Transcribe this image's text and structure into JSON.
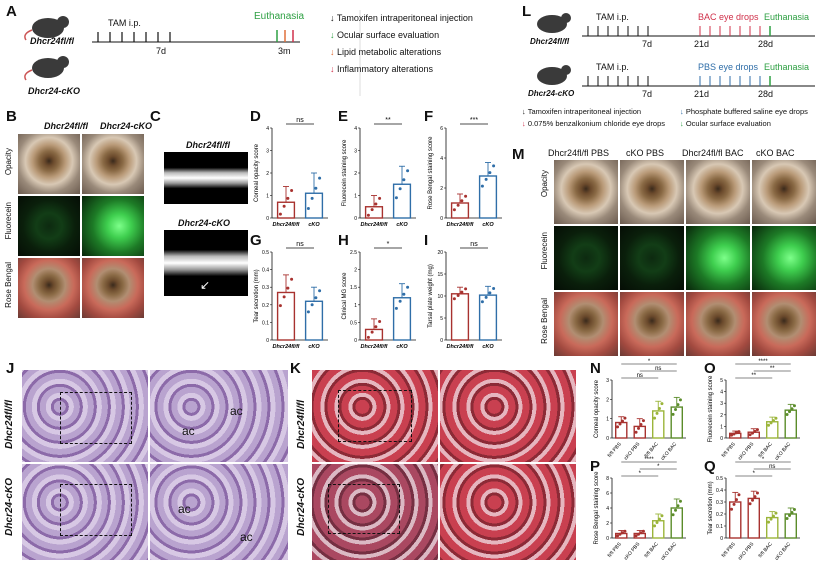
{
  "panels": {
    "A": "A",
    "B": "B",
    "C": "C",
    "D": "D",
    "E": "E",
    "F": "F",
    "G": "G",
    "H": "H",
    "I": "I",
    "J": "J",
    "K": "K",
    "L": "L",
    "M": "M",
    "N": "N",
    "O": "O",
    "P": "P",
    "Q": "Q"
  },
  "panelA": {
    "mouse1": "Dhcr24fl/fl",
    "mouse2": "Dhcr24-cKO",
    "tam": "TAM i.p.",
    "euth": "Euthanasia",
    "t7d": "7d",
    "t3m": "3m",
    "legend": [
      {
        "text": "Tamoxifen intraperitoneal injection",
        "color": "#111111"
      },
      {
        "text": "Ocular surface evaluation",
        "color": "#2ea043"
      },
      {
        "text": "Lipid metabolic alterations",
        "color": "#e0703a"
      },
      {
        "text": "Inflammatory alterations",
        "color": "#d0304a"
      }
    ]
  },
  "panelL": {
    "mouse1": "Dhcr24fl/fl",
    "mouse2": "Dhcr24-cKO",
    "tam": "TAM i.p.",
    "bac": "BAC eye drops",
    "pbs": "PBS eye drops",
    "euth": "Euthanasia",
    "t7d": "7d",
    "t21d": "21d",
    "t28d": "28d",
    "legend_left": [
      "Tamoxifen intraperitoneal injection",
      "0.075% benzalkonium chloride eye drops"
    ],
    "legend_right": [
      "Phosphate buffered saline eye drops",
      "Ocular surface evaluation"
    ]
  },
  "panelB": {
    "cols": [
      "Dhcr24fl/fl",
      "Dhcr24-cKO"
    ],
    "rows": [
      "Opacity",
      "Fluorecein",
      "Rose Bengal"
    ]
  },
  "panelC": {
    "top": "Dhcr24fl/fl",
    "bottom": "Dhcr24-cKO"
  },
  "panelM": {
    "cols": [
      "Dhcr24fl/fl PBS",
      "cKO PBS",
      "Dhcr24fl/fl BAC",
      "cKO BAC"
    ],
    "rows": [
      "Opacity",
      "Fluorecein",
      "Rose Bengal"
    ]
  },
  "panelJ": {
    "rows": [
      "Dhcr24fl/fl",
      "Dhcr24-cKO"
    ],
    "ac": "ac"
  },
  "panelK": {
    "rows": [
      "Dhcr24fl/fl",
      "Dhcr24-cKO"
    ]
  },
  "colors": {
    "red": "#a8322f",
    "blue": "#2f6ea8",
    "green": "#5b8c2a",
    "yellowgreen": "#9bb53a"
  },
  "chart_data": [
    {
      "panel": "D",
      "type": "bar",
      "ylabel": "Corneal opacity score",
      "categories": [
        "Dhcr24fl/fl",
        "cKO"
      ],
      "values": [
        0.7,
        1.1
      ],
      "errors": [
        0.7,
        0.9
      ],
      "ylim": [
        0,
        4
      ],
      "yticks": [
        0,
        1,
        2,
        3,
        4
      ],
      "sig": "ns"
    },
    {
      "panel": "E",
      "type": "bar",
      "ylabel": "Fluorecein staining score",
      "categories": [
        "Dhcr24fl/fl",
        "cKO"
      ],
      "values": [
        0.5,
        1.5
      ],
      "errors": [
        0.5,
        0.8
      ],
      "ylim": [
        0,
        4
      ],
      "yticks": [
        0,
        1,
        2,
        3,
        4
      ],
      "sig": "**"
    },
    {
      "panel": "F",
      "type": "bar",
      "ylabel": "Rose Bengal staining score",
      "categories": [
        "Dhcr24fl/fl",
        "cKO"
      ],
      "values": [
        1.0,
        2.8
      ],
      "errors": [
        0.6,
        0.9
      ],
      "ylim": [
        0,
        6
      ],
      "yticks": [
        0,
        2,
        4,
        6
      ],
      "sig": "***"
    },
    {
      "panel": "G",
      "type": "bar",
      "ylabel": "Tear secretion (mm)",
      "categories": [
        "Dhcr24fl/fl",
        "cKO"
      ],
      "values": [
        0.27,
        0.22
      ],
      "errors": [
        0.1,
        0.08
      ],
      "ylim": [
        0,
        0.5
      ],
      "yticks": [
        0,
        0.1,
        0.2,
        0.3,
        0.4,
        0.5
      ],
      "sig": "ns"
    },
    {
      "panel": "H",
      "type": "bar",
      "ylabel": "Clinical MG score",
      "categories": [
        "Dhcr24fl/fl",
        "cKO"
      ],
      "values": [
        0.3,
        1.2
      ],
      "errors": [
        0.3,
        0.4
      ],
      "ylim": [
        0,
        2.5
      ],
      "yticks": [
        0,
        0.5,
        1,
        1.5,
        2,
        2.5
      ],
      "sig": "*"
    },
    {
      "panel": "I",
      "type": "bar",
      "ylabel": "Tarsal plate weight (mg)",
      "categories": [
        "Dhcr24fl/fl",
        "cKO"
      ],
      "values": [
        10.5,
        10.2
      ],
      "errors": [
        1.5,
        2.0
      ],
      "ylim": [
        0,
        20
      ],
      "yticks": [
        0,
        5,
        10,
        15,
        20
      ],
      "sig": "ns"
    },
    {
      "panel": "N",
      "type": "bar",
      "ylabel": "Corneal opacity score",
      "categories": [
        "fl/fl PBS",
        "cKO PBS",
        "fl/fl BAC",
        "cKO BAC"
      ],
      "values": [
        0.8,
        0.6,
        1.4,
        1.6
      ],
      "errors": [
        0.3,
        0.4,
        0.5,
        0.5
      ],
      "ylim": [
        0,
        3
      ],
      "yticks": [
        0,
        1,
        2,
        3
      ],
      "sig_labels": [
        "ns",
        "ns",
        "*"
      ]
    },
    {
      "panel": "O",
      "type": "bar",
      "ylabel": "Fluorecein staining score",
      "categories": [
        "fl/fl PBS",
        "cKO PBS",
        "fl/fl BAC",
        "cKO BAC"
      ],
      "values": [
        0.4,
        0.5,
        1.4,
        2.4
      ],
      "errors": [
        0.2,
        0.3,
        0.4,
        0.5
      ],
      "ylim": [
        0,
        5
      ],
      "yticks": [
        0,
        1,
        2,
        3,
        4,
        5
      ],
      "sig_labels": [
        "**",
        "**",
        "****"
      ]
    },
    {
      "panel": "P",
      "type": "bar",
      "ylabel": "Rose Bengal staining score",
      "categories": [
        "fl/fl PBS",
        "cKO PBS",
        "fl/fl BAC",
        "cKO BAC"
      ],
      "values": [
        0.6,
        0.6,
        2.3,
        4.0
      ],
      "errors": [
        0.4,
        0.4,
        0.9,
        1.2
      ],
      "ylim": [
        0,
        8
      ],
      "yticks": [
        0,
        2,
        4,
        6,
        8
      ],
      "sig_labels": [
        "*",
        "*",
        "****"
      ]
    },
    {
      "panel": "Q",
      "type": "bar",
      "ylabel": "Tear secretion (mm)",
      "categories": [
        "fl/fl PBS",
        "cKO PBS",
        "fl/fl BAC",
        "cKO BAC"
      ],
      "values": [
        0.3,
        0.33,
        0.17,
        0.2
      ],
      "errors": [
        0.08,
        0.06,
        0.05,
        0.05
      ],
      "ylim": [
        0,
        0.5
      ],
      "yticks": [
        0,
        0.1,
        0.2,
        0.3,
        0.4,
        0.5
      ],
      "sig_labels": [
        "*",
        "ns",
        "*"
      ]
    }
  ]
}
